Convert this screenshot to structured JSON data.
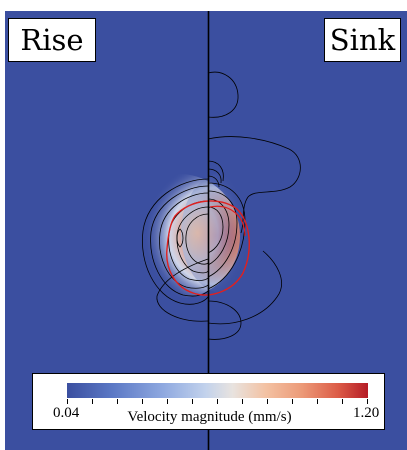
{
  "panels": {
    "left_label": "Rise",
    "right_label": "Sink"
  },
  "colorbar": {
    "min_label": "0.04",
    "max_label": "1.20",
    "title": "Velocity magnitude (mm/s)",
    "colors": [
      "#3b4fa0",
      "#8fa9e0",
      "#e8e3df",
      "#ec9a78",
      "#b51c26"
    ]
  },
  "colors": {
    "background_field": "#3b4fa0",
    "interface_outline": "#e0201f",
    "contour_lines": "#000000"
  }
}
